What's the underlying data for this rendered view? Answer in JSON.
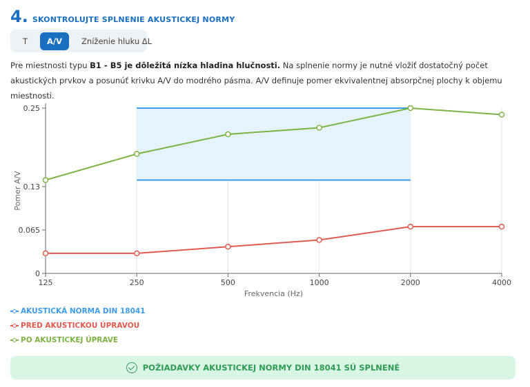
{
  "header": {
    "number": "4.",
    "title": "SKONTROLUJTE SPLNENIE AKUSTICKEJ NORMY"
  },
  "tabs": [
    {
      "label": "T",
      "active": false
    },
    {
      "label": "A/V",
      "active": true
    },
    {
      "label": "Zníženie hluku ΔL",
      "active": false
    }
  ],
  "description": {
    "pre": "Pre miestnosti typu ",
    "bold": "B1 - B5 je dôležitá nízka hladina hlučnosti.",
    "post": " Na splnenie normy je nutné vložiť dostatočný počet akustických prvkov a posunúť krivku A/V do modrého pásma. A/V definuje pomer ekvivalentnej absorpčnej plochy k objemu miestnosti."
  },
  "chart_data": {
    "type": "line",
    "xlabel": "Frekvencia (Hz)",
    "ylabel": "Pomer A/V",
    "categories": [
      "125",
      "250",
      "500",
      "1000",
      "2000",
      "4000"
    ],
    "y_ticks": [
      "0",
      "0.065",
      "0.13",
      "0.25"
    ],
    "y_tick_values": [
      0,
      0.065,
      0.13,
      0.25
    ],
    "ylim": [
      0,
      0.25
    ],
    "norm_band": {
      "from_category": "250",
      "to_category": "2000",
      "lower": 0.14,
      "upper": 0.25
    },
    "series": [
      {
        "name": "AKUSTICKÁ NORMA DIN 18041",
        "color": "#3d9be9"
      },
      {
        "name": "PRED AKUSTICKOU ÚPRAVOU",
        "color": "#e05a4f",
        "values": [
          0.03,
          0.03,
          0.04,
          0.05,
          0.07,
          0.07
        ]
      },
      {
        "name": "PO AKUSTICKEJ ÚPRAVE",
        "color": "#7cb342",
        "values": [
          0.14,
          0.18,
          0.21,
          0.22,
          0.25,
          0.24
        ]
      }
    ]
  },
  "banner": {
    "text": "POŽIADAVKY AKUSTICKEJ NORMY DIN 18041 SÚ SPLNENÉ"
  }
}
